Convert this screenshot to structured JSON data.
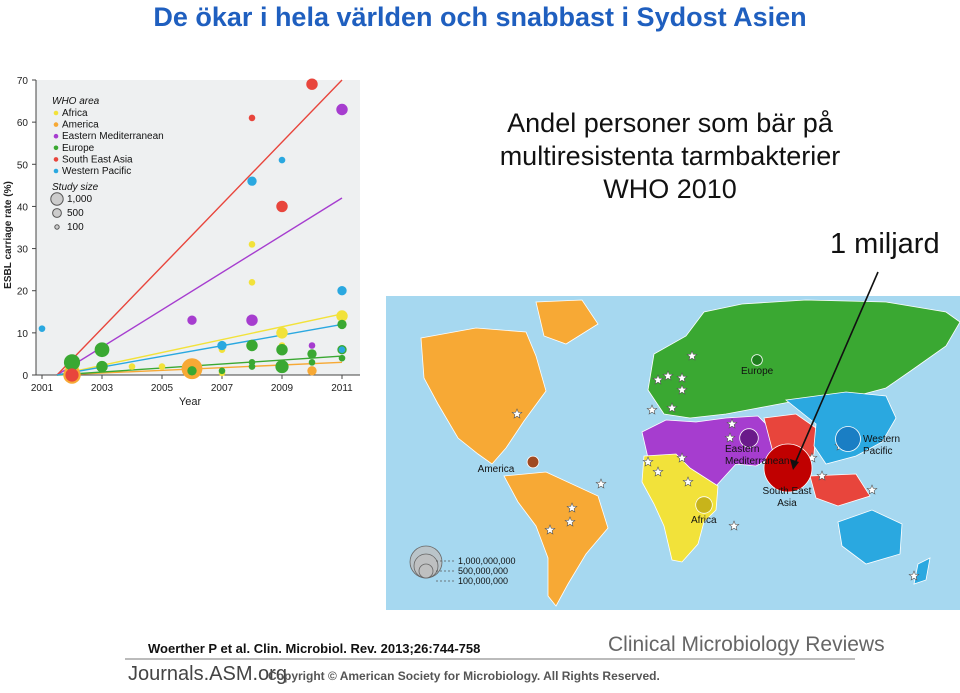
{
  "slide": {
    "title": "De ökar i hela världen och snabbast i Sydost Asien",
    "subtitle_line1": "Andel personer som bär på",
    "subtitle_line2": "multiresistenta tarmbakterier",
    "subtitle_line3": "WHO 2010",
    "pointer_label": "1 miljard",
    "citation": "Woerther P et al. Clin. Microbiol. Rev. 2013;26:744-758",
    "journal_logo": "Clinical Microbiology Reviews",
    "asm_logo": "Journals.ASM.org",
    "copyright": "Copyright © American Society for Microbiology. All Rights Reserved."
  },
  "colors": {
    "title": "#1f5fbf",
    "Africa": "#f2e23a",
    "America": "#f7a935",
    "Eastern Mediterranean": "#a63dcf",
    "Europe": "#3aa832",
    "South East Asia": "#e8453c",
    "Western Pacific": "#2aa8e0",
    "map_background": "#a6d8f0"
  },
  "chart_data": [
    {
      "type": "scatter",
      "xlabel": "Year",
      "ylabel": "ESBL carriage rate (%)",
      "xlim": [
        2000.8,
        2011.6
      ],
      "ylim": [
        0,
        70
      ],
      "x_ticks": [
        "2001",
        "2003",
        "2005",
        "2007",
        "2009",
        "2011"
      ],
      "y_ticks": [
        "0",
        "10",
        "20",
        "30",
        "40",
        "50",
        "60",
        "70"
      ],
      "grid": false,
      "legend_position": "top-left",
      "legend_title": "WHO area",
      "size_legend_title": "Study size",
      "size_legend": [
        "1,000",
        "500",
        "100"
      ],
      "series": [
        {
          "name": "Africa",
          "points": [
            [
              2002,
              1
            ],
            [
              2004,
              2
            ],
            [
              2005,
              2
            ],
            [
              2007,
              0.5
            ],
            [
              2007,
              6
            ],
            [
              2008,
              22
            ],
            [
              2008,
              31
            ],
            [
              2009,
              10
            ],
            [
              2009,
              7
            ],
            [
              2011,
              14
            ]
          ],
          "sizes": [
            500,
            100,
            100,
            100,
            100,
            100,
            100,
            300,
            100,
            300
          ],
          "trend": [
            [
              2001.5,
              0
            ],
            [
              2011,
              14.5
            ]
          ]
        },
        {
          "name": "America",
          "points": [
            [
              2002,
              0
            ],
            [
              2006,
              1.5
            ],
            [
              2010,
              1
            ]
          ],
          "sizes": [
            700,
            1000,
            200
          ],
          "trend": [
            [
              2001.5,
              0
            ],
            [
              2011,
              3
            ]
          ]
        },
        {
          "name": "Eastern Mediterranean",
          "points": [
            [
              2006,
              13
            ],
            [
              2008,
              13
            ],
            [
              2010,
              7
            ],
            [
              2011,
              63
            ]
          ],
          "sizes": [
            200,
            300,
            100,
            300
          ],
          "trend": [
            [
              2001.5,
              0
            ],
            [
              2011,
              42
            ]
          ]
        },
        {
          "name": "Europe",
          "points": [
            [
              2002,
              3
            ],
            [
              2003,
              6
            ],
            [
              2003,
              2
            ],
            [
              2006,
              1
            ],
            [
              2007,
              1
            ],
            [
              2008,
              7
            ],
            [
              2008,
              2
            ],
            [
              2008,
              3
            ],
            [
              2009,
              6
            ],
            [
              2009,
              2
            ],
            [
              2010,
              5
            ],
            [
              2010,
              3
            ],
            [
              2011,
              6
            ],
            [
              2011,
              4
            ],
            [
              2011,
              12
            ]
          ],
          "sizes": [
            600,
            500,
            300,
            200,
            100,
            300,
            100,
            100,
            300,
            400,
            200,
            100,
            200,
            100,
            200
          ],
          "trend": [
            [
              2001.5,
              0
            ],
            [
              2011,
              4.5
            ]
          ]
        },
        {
          "name": "South East Asia",
          "points": [
            [
              2002,
              0
            ],
            [
              2008,
              61
            ],
            [
              2009,
              40
            ],
            [
              2010,
              69
            ]
          ],
          "sizes": [
            400,
            100,
            300,
            300
          ],
          "trend": [
            [
              2001.5,
              0
            ],
            [
              2011,
              70
            ]
          ]
        },
        {
          "name": "Western Pacific",
          "points": [
            [
              2001,
              11
            ],
            [
              2007,
              7
            ],
            [
              2008,
              46
            ],
            [
              2009,
              51
            ],
            [
              2011,
              20
            ],
            [
              2011,
              6
            ]
          ],
          "sizes": [
            100,
            200,
            200,
            100,
            200,
            100
          ],
          "trend": [
            [
              2001.5,
              0
            ],
            [
              2011,
              12
            ]
          ]
        }
      ]
    },
    {
      "type": "map",
      "title": "",
      "legend_title": "",
      "size_legend": [
        "1,000,000,000",
        "500,000,000",
        "100,000,000"
      ],
      "regions": [
        {
          "name": "America",
          "label": "America",
          "carriers": 60000000
        },
        {
          "name": "Europe",
          "label": "Europe",
          "carriers": 50000000
        },
        {
          "name": "Eastern Mediterranean",
          "label_lines": [
            "Eastern",
            "Mediterranean"
          ],
          "carriers": 150000000
        },
        {
          "name": "Africa",
          "label": "Africa",
          "carriers": 120000000
        },
        {
          "name": "South East Asia",
          "label_lines": [
            "South East",
            "Asia"
          ],
          "carriers": 1000000000
        },
        {
          "name": "Western Pacific",
          "label_lines": [
            "Western",
            "Pacific"
          ],
          "carriers": 270000000
        }
      ]
    }
  ]
}
